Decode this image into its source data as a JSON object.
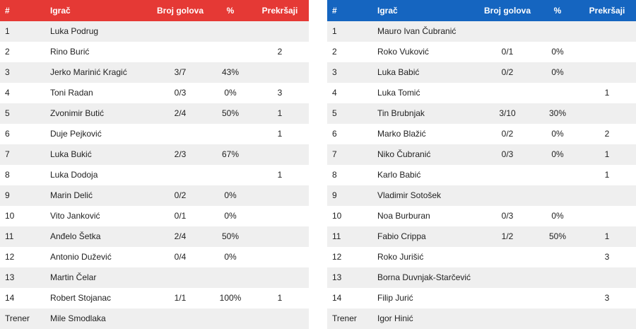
{
  "tables": [
    {
      "color": "#e53935",
      "header": [
        "#",
        "Igrač",
        "Broj golova",
        "%",
        "Prekršaji"
      ],
      "rows": [
        [
          1,
          "Luka Podrug",
          null,
          null,
          null
        ],
        [
          2,
          "Rino Burić",
          null,
          null,
          2
        ],
        [
          3,
          "Jerko Marinić Kragić",
          "3/7",
          "43%",
          null
        ],
        [
          4,
          "Toni Radan",
          "0/3",
          "0%",
          3
        ],
        [
          5,
          "Zvonimir Butić",
          "2/4",
          "50%",
          1
        ],
        [
          6,
          "Duje Pejković",
          null,
          null,
          1
        ],
        [
          7,
          "Luka Bukić",
          "2/3",
          "67%",
          null
        ],
        [
          8,
          "Luka Dodoja",
          null,
          null,
          1
        ],
        [
          9,
          "Marin Delić",
          "0/2",
          "0%",
          null
        ],
        [
          10,
          "Vito Janković",
          "0/1",
          "0%",
          null
        ],
        [
          11,
          "Anđelo Šetka",
          "2/4",
          "50%",
          null
        ],
        [
          12,
          "Antonio Dužević",
          "0/4",
          "0%",
          null
        ],
        [
          13,
          "Martin Čelar",
          null,
          null,
          null
        ],
        [
          14,
          "Robert Stojanac",
          "1/1",
          "100%",
          1
        ],
        [
          "Trener",
          "Mile Smodlaka"
        ]
      ]
    },
    {
      "color": "#1565c0",
      "header": [
        "#",
        "Igrač",
        "Broj golova",
        "%",
        "Prekršaji"
      ],
      "rows": [
        [
          1,
          "Mauro Ivan Čubranić",
          null,
          null,
          null
        ],
        [
          2,
          "Roko Vuković",
          "0/1",
          "0%",
          null
        ],
        [
          3,
          "Luka Babić",
          "0/2",
          "0%",
          null
        ],
        [
          4,
          "Luka Tomić",
          null,
          null,
          1
        ],
        [
          5,
          "Tin Brubnjak",
          "3/10",
          "30%",
          null
        ],
        [
          6,
          "Marko Blažić",
          "0/2",
          "0%",
          2
        ],
        [
          7,
          "Niko Čubranić",
          "0/3",
          "0%",
          1
        ],
        [
          8,
          "Karlo Babić",
          null,
          null,
          1
        ],
        [
          9,
          "Vladimir Sotošek",
          null,
          null,
          null
        ],
        [
          10,
          "Noa Burburan",
          "0/3",
          "0%",
          null
        ],
        [
          11,
          "Fabio Crippa",
          "1/2",
          "50%",
          1
        ],
        [
          12,
          "Roko Jurišić",
          null,
          null,
          3
        ],
        [
          13,
          "Borna Duvnjak-Starčević",
          null,
          null,
          null
        ],
        [
          14,
          "Filip Jurić",
          null,
          null,
          3
        ],
        [
          "Trener",
          "Igor Hinić"
        ]
      ]
    }
  ]
}
